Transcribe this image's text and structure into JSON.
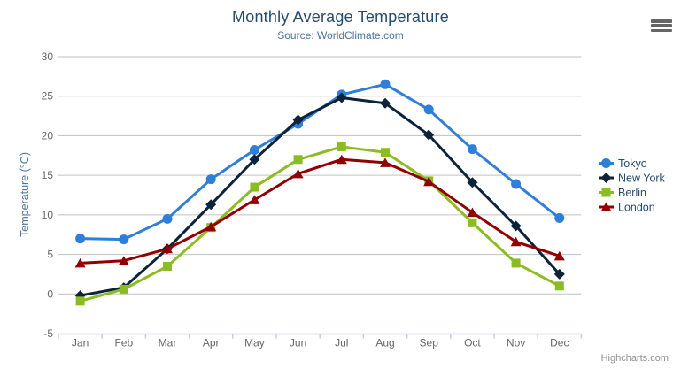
{
  "header": {
    "title": "Monthly Average Temperature",
    "subtitle": "Source: WorldClimate.com"
  },
  "credits_label": "Highcharts.com",
  "export_menu": {
    "icon": "hamburger-icon"
  },
  "colors": {
    "title": "#274b6d",
    "subtitle": "#4d759e",
    "axis_title": "#4d759e",
    "tick_labels": "#666666",
    "gridline": "#c0c0c0",
    "axis_line": "#c0d0e0",
    "legend_text": "#274b6d",
    "credits": "#909090",
    "menu_icon": "#666666"
  },
  "chart_data": {
    "type": "line",
    "title": "Monthly Average Temperature",
    "subtitle": "Source: WorldClimate.com",
    "categories": [
      "Jan",
      "Feb",
      "Mar",
      "Apr",
      "May",
      "Jun",
      "Jul",
      "Aug",
      "Sep",
      "Oct",
      "Nov",
      "Dec"
    ],
    "series": [
      {
        "name": "Tokyo",
        "color": "#2f7ed8",
        "marker": "circle",
        "values": [
          7.0,
          6.9,
          9.5,
          14.5,
          18.2,
          21.5,
          25.2,
          26.5,
          23.3,
          18.3,
          13.9,
          9.6
        ]
      },
      {
        "name": "New York",
        "color": "#0d233a",
        "marker": "diamond",
        "values": [
          -0.2,
          0.8,
          5.7,
          11.3,
          17.0,
          22.0,
          24.8,
          24.1,
          20.1,
          14.1,
          8.6,
          2.5
        ]
      },
      {
        "name": "Berlin",
        "color": "#8bbc21",
        "marker": "square",
        "values": [
          -0.9,
          0.6,
          3.5,
          8.4,
          13.5,
          17.0,
          18.6,
          17.9,
          14.3,
          9.0,
          3.9,
          1.0
        ]
      },
      {
        "name": "London",
        "color": "#910000",
        "marker": "triangle",
        "values": [
          3.9,
          4.2,
          5.7,
          8.5,
          11.9,
          15.2,
          17.0,
          16.6,
          14.2,
          10.3,
          6.6,
          4.8
        ]
      }
    ],
    "xlabel": "",
    "ylabel": "Temperature (°C)",
    "ylim": [
      -5,
      30
    ],
    "yticks": [
      -5,
      0,
      5,
      10,
      15,
      20,
      25,
      30
    ],
    "grid": true,
    "legend": {
      "position": "right-middle",
      "items": [
        "Tokyo",
        "New York",
        "Berlin",
        "London"
      ]
    }
  }
}
